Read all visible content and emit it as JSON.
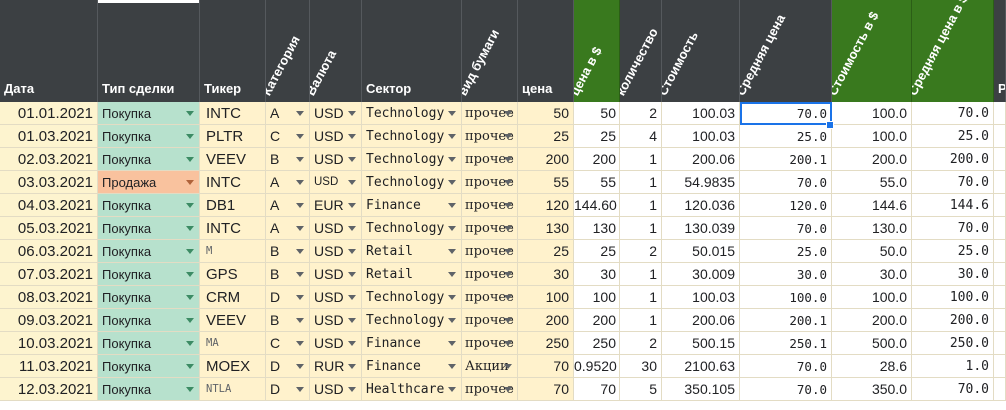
{
  "columns": [
    {
      "key": "date",
      "label": "Дата",
      "rotated": false,
      "green": false
    },
    {
      "key": "type",
      "label": "Тип сделки",
      "rotated": false,
      "green": false
    },
    {
      "key": "ticker",
      "label": "Тикер",
      "rotated": false,
      "green": false
    },
    {
      "key": "category",
      "label": "Категория",
      "rotated": true,
      "green": false
    },
    {
      "key": "currency",
      "label": "Валюта",
      "rotated": true,
      "green": false
    },
    {
      "key": "sector",
      "label": "Сектор",
      "rotated": false,
      "green": false
    },
    {
      "key": "paper",
      "label": "вид бумаги",
      "rotated": true,
      "green": false
    },
    {
      "key": "price",
      "label": "цена",
      "rotated": false,
      "green": false
    },
    {
      "key": "price_usd",
      "label": "цена в $",
      "rotated": true,
      "green": true
    },
    {
      "key": "qty",
      "label": "количество",
      "rotated": true,
      "green": false
    },
    {
      "key": "cost",
      "label": "Стоимость",
      "rotated": true,
      "green": false
    },
    {
      "key": "avg",
      "label": "Средняя цена",
      "rotated": true,
      "green": false
    },
    {
      "key": "cost_usd",
      "label": "Стоимость в $",
      "rotated": true,
      "green": true
    },
    {
      "key": "avg_usd",
      "label": "Средняя цена в $",
      "rotated": true,
      "green": true
    },
    {
      "key": "extra",
      "label": "Р",
      "rotated": false,
      "green": false
    }
  ],
  "rows": [
    {
      "date": "01.01.2021",
      "type": "Покупка",
      "ticker": "INTC",
      "category": "A",
      "currency": "USD",
      "sector": "Technology",
      "paper": "прочее",
      "price": "50",
      "price_usd": "50",
      "qty": "2",
      "cost": "100.03",
      "avg": "70.0",
      "cost_usd": "100.0",
      "avg_usd": "70.0"
    },
    {
      "date": "01.03.2021",
      "type": "Покупка",
      "ticker": "PLTR",
      "category": "C",
      "currency": "USD",
      "sector": "Technology",
      "paper": "прочее",
      "price": "25",
      "price_usd": "25",
      "qty": "4",
      "cost": "100.03",
      "avg": "25.0",
      "cost_usd": "100.0",
      "avg_usd": "25.0"
    },
    {
      "date": "02.03.2021",
      "type": "Покупка",
      "ticker": "VEEV",
      "category": "B",
      "currency": "USD",
      "sector": "Technology",
      "paper": "прочее",
      "price": "200",
      "price_usd": "200",
      "qty": "1",
      "cost": "200.06",
      "avg": "200.1",
      "cost_usd": "200.0",
      "avg_usd": "200.0"
    },
    {
      "date": "03.03.2021",
      "type": "Продажа",
      "ticker": "INTC",
      "category": "A",
      "currency": "USD",
      "sector": "Technology",
      "paper": "прочее",
      "price": "55",
      "price_usd": "55",
      "qty": "1",
      "cost": "54.9835",
      "avg": "70.0",
      "cost_usd": "55.0",
      "avg_usd": "70.0"
    },
    {
      "date": "04.03.2021",
      "type": "Покупка",
      "ticker": "DB1",
      "category": "A",
      "currency": "EUR",
      "sector": "Finance",
      "paper": "прочее",
      "price": "120",
      "price_usd": "144.60",
      "qty": "1",
      "cost": "120.036",
      "avg": "120.0",
      "cost_usd": "144.6",
      "avg_usd": "144.6"
    },
    {
      "date": "05.03.2021",
      "type": "Покупка",
      "ticker": "INTC",
      "category": "A",
      "currency": "USD",
      "sector": "Technology",
      "paper": "прочее",
      "price": "130",
      "price_usd": "130",
      "qty": "1",
      "cost": "130.039",
      "avg": "70.0",
      "cost_usd": "130.0",
      "avg_usd": "70.0"
    },
    {
      "date": "06.03.2021",
      "type": "Покупка",
      "ticker": "M",
      "category": "B",
      "currency": "USD",
      "sector": "Retail",
      "paper": "прочее",
      "price": "25",
      "price_usd": "25",
      "qty": "2",
      "cost": "50.015",
      "avg": "25.0",
      "cost_usd": "50.0",
      "avg_usd": "25.0"
    },
    {
      "date": "07.03.2021",
      "type": "Покупка",
      "ticker": "GPS",
      "category": "B",
      "currency": "USD",
      "sector": "Retail",
      "paper": "прочее",
      "price": "30",
      "price_usd": "30",
      "qty": "1",
      "cost": "30.009",
      "avg": "30.0",
      "cost_usd": "30.0",
      "avg_usd": "30.0"
    },
    {
      "date": "08.03.2021",
      "type": "Покупка",
      "ticker": "CRM",
      "category": "D",
      "currency": "USD",
      "sector": "Technology",
      "paper": "прочее",
      "price": "100",
      "price_usd": "100",
      "qty": "1",
      "cost": "100.03",
      "avg": "100.0",
      "cost_usd": "100.0",
      "avg_usd": "100.0"
    },
    {
      "date": "09.03.2021",
      "type": "Покупка",
      "ticker": "VEEV",
      "category": "B",
      "currency": "USD",
      "sector": "Technology",
      "paper": "прочее",
      "price": "200",
      "price_usd": "200",
      "qty": "1",
      "cost": "200.06",
      "avg": "200.1",
      "cost_usd": "200.0",
      "avg_usd": "200.0"
    },
    {
      "date": "10.03.2021",
      "type": "Покупка",
      "ticker": "MA",
      "category": "C",
      "currency": "USD",
      "sector": "Finance",
      "paper": "прочее",
      "price": "250",
      "price_usd": "250",
      "qty": "2",
      "cost": "500.15",
      "avg": "250.1",
      "cost_usd": "500.0",
      "avg_usd": "250.0"
    },
    {
      "date": "11.03.2021",
      "type": "Покупка",
      "ticker": "MOEX",
      "category": "D",
      "currency": "RUR",
      "sector": "Finance",
      "paper": "Акции",
      "price": "70",
      "price_usd": "0.9520",
      "qty": "30",
      "cost": "2100.63",
      "avg": "70.0",
      "cost_usd": "28.6",
      "avg_usd": "1.0"
    },
    {
      "date": "12.03.2021",
      "type": "Покупка",
      "ticker": "NTLA",
      "category": "D",
      "currency": "USD",
      "sector": "Healthcare",
      "paper": "прочее",
      "price": "70",
      "price_usd": "70",
      "qty": "5",
      "cost": "350.105",
      "avg": "70.0",
      "cost_usd": "350.0",
      "avg_usd": "70.0"
    }
  ],
  "colors": {
    "header_bg": "#3c4043",
    "header_green": "#39791e",
    "buy_bg": "#b7e1cd",
    "sell_bg": "#f9c29e",
    "input_bg": "#fff2cc",
    "selection": "#1a73e8"
  },
  "icons": {
    "dropdown": "dropdown-arrow-icon"
  }
}
